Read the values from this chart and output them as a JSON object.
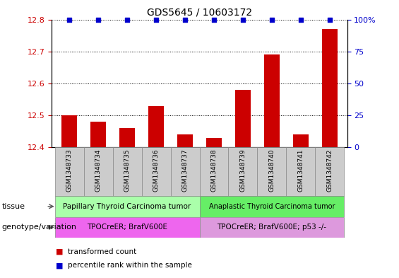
{
  "title": "GDS5645 / 10603172",
  "samples": [
    "GSM1348733",
    "GSM1348734",
    "GSM1348735",
    "GSM1348736",
    "GSM1348737",
    "GSM1348738",
    "GSM1348739",
    "GSM1348740",
    "GSM1348741",
    "GSM1348742"
  ],
  "transformed_count": [
    12.5,
    12.48,
    12.46,
    12.53,
    12.44,
    12.43,
    12.58,
    12.69,
    12.44,
    12.77
  ],
  "percentile_rank": [
    100,
    100,
    100,
    100,
    100,
    100,
    100,
    100,
    100,
    100
  ],
  "bar_color": "#cc0000",
  "scatter_color": "#0000cc",
  "ylim_left": [
    12.4,
    12.8
  ],
  "ylim_right": [
    0,
    100
  ],
  "yticks_left": [
    12.4,
    12.5,
    12.6,
    12.7,
    12.8
  ],
  "yticks_right": [
    0,
    25,
    50,
    75,
    100
  ],
  "tissue_group1": "Papillary Thyroid Carcinoma tumor",
  "tissue_group2": "Anaplastic Thyroid Carcinoma tumor",
  "genotype_group1": "TPOCreER; BrafV600E",
  "genotype_group2": "TPOCreER; BrafV600E; p53 -/-",
  "tissue_color1": "#aaffaa",
  "tissue_color2": "#66ee66",
  "genotype_color1": "#ee66ee",
  "genotype_color2": "#dd99dd",
  "sample_bg_color": "#cccccc",
  "legend_red": "transformed count",
  "legend_blue": "percentile rank within the sample",
  "tissue_label": "tissue",
  "genotype_label": "genotype/variation",
  "split_index": 5,
  "bar_width": 0.55
}
